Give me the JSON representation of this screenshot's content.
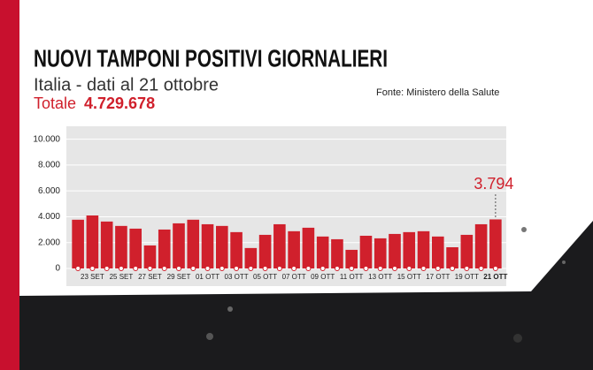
{
  "chart_data": {
    "type": "bar",
    "title": "NUOVI TAMPONI POSITIVI GIORNALIERI",
    "subtitle": "Italia - dati al 21 ottobre",
    "total": {
      "label": "Totale",
      "value": "4.729.678"
    },
    "source": "Fonte: Ministero della Salute",
    "categories": [
      null,
      "23 SET",
      null,
      "25 SET",
      null,
      "27 SET",
      null,
      "29 SET",
      null,
      "01 OTT",
      null,
      "03 OTT",
      null,
      "05 OTT",
      null,
      "07 OTT",
      null,
      "09 OTT",
      null,
      "11 OTT",
      null,
      "13 OTT",
      null,
      "15 OTT",
      null,
      "17 OTT",
      null,
      "19 OTT",
      null,
      "21 OTT"
    ],
    "values": [
      3770,
      4100,
      3630,
      3290,
      3080,
      1780,
      3010,
      3490,
      3770,
      3420,
      3290,
      2810,
      1580,
      2600,
      3420,
      2880,
      3150,
      2470,
      2260,
      1440,
      2530,
      2330,
      2670,
      2810,
      2880,
      2470,
      1640,
      2600,
      3420,
      3794
    ],
    "value_labels": [
      null,
      null,
      null,
      null,
      null,
      null,
      null,
      null,
      null,
      null,
      null,
      null,
      null,
      null,
      null,
      null,
      null,
      null,
      null,
      null,
      null,
      null,
      null,
      null,
      null,
      null,
      null,
      null,
      null,
      "3.794"
    ],
    "color": "#d0202c",
    "ylim": [
      0,
      11000
    ],
    "yticks": [
      0,
      {
        "value": 2000,
        "label": "2.000"
      },
      {
        "value": 4000,
        "label": "4.000"
      },
      {
        "value": 6000,
        "label": "6.000"
      },
      {
        "value": 8000,
        "label": "8.000"
      },
      {
        "value": 10000,
        "label": "10.000"
      }
    ],
    "grid": true
  }
}
